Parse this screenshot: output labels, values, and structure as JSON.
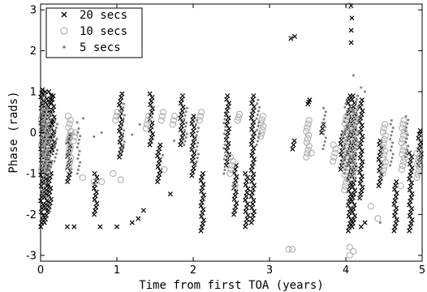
{
  "chart_data": {
    "type": "scatter",
    "xlabel": "Time from first TOA (years)",
    "ylabel": "Phase (rads)",
    "xlim": [
      0,
      5
    ],
    "ylim": [
      -3.1416,
      3.1416
    ],
    "x_ticks": [
      0,
      1,
      2,
      3,
      4,
      5
    ],
    "x_tick_labels": [
      "0",
      "1",
      "2",
      "3",
      "4",
      "5"
    ],
    "y_ticks": [
      -3,
      -2,
      -1,
      0,
      1,
      2,
      3
    ],
    "y_tick_labels": [
      "-3",
      "-2",
      "-1",
      "0",
      "1",
      "2",
      "3"
    ],
    "grid": false,
    "legend_position": "top-left",
    "series": [
      {
        "name": "20 secs",
        "marker": "x",
        "color": "#000000",
        "clusters": [
          {
            "x": 0.02,
            "ymin": -2.3,
            "ymax": 1.05
          },
          {
            "x": 0.07,
            "ymin": -2.2,
            "ymax": 1.0
          },
          {
            "x": 0.12,
            "ymin": -1.9,
            "ymax": 1.0
          },
          {
            "x": 0.16,
            "ymin": -0.5,
            "ymax": 0.9
          },
          {
            "x": 0.37,
            "ymin": -1.2,
            "ymax": -0.05
          },
          {
            "x": 0.72,
            "ymin": -2.0,
            "ymax": -1.0
          },
          {
            "x": 1.05,
            "ymin": -0.6,
            "ymax": 0.95
          },
          {
            "x": 1.45,
            "ymin": -0.3,
            "ymax": 0.95
          },
          {
            "x": 1.55,
            "ymin": -1.2,
            "ymax": -0.3
          },
          {
            "x": 1.85,
            "ymin": -0.3,
            "ymax": 0.9
          },
          {
            "x": 2.0,
            "ymin": -1.05,
            "ymax": 0.4
          },
          {
            "x": 2.12,
            "ymin": -2.4,
            "ymax": -1.0
          },
          {
            "x": 2.45,
            "ymin": -0.8,
            "ymax": 0.9
          },
          {
            "x": 2.55,
            "ymin": -2.0,
            "ymax": -0.8
          },
          {
            "x": 2.7,
            "ymin": -2.3,
            "ymax": -1.0
          },
          {
            "x": 2.78,
            "ymin": -2.2,
            "ymax": 0.9
          },
          {
            "x": 3.32,
            "ymin": -0.4,
            "ymax": -0.2
          },
          {
            "x": 3.52,
            "ymin": 0.7,
            "ymax": 0.8
          },
          {
            "x": 3.7,
            "ymin": 0.0,
            "ymax": 0.2
          },
          {
            "x": 3.95,
            "ymin": -0.9,
            "ymax": 0.0
          },
          {
            "x": 4.05,
            "ymin": -2.4,
            "ymax": 0.9
          },
          {
            "x": 4.1,
            "ymin": -2.3,
            "ymax": 0.9
          },
          {
            "x": 4.2,
            "ymin": -1.6,
            "ymax": 0.8
          },
          {
            "x": 4.45,
            "ymin": -1.3,
            "ymax": -0.2
          },
          {
            "x": 4.65,
            "ymin": -2.4,
            "ymax": -1.2
          },
          {
            "x": 4.85,
            "ymin": -2.4,
            "ymax": -0.5
          },
          {
            "x": 4.97,
            "ymin": -0.8,
            "ymax": 0.05
          }
        ],
        "points": [
          {
            "x": 0.35,
            "y": -2.3
          },
          {
            "x": 0.44,
            "y": -2.3
          },
          {
            "x": 0.78,
            "y": -2.3
          },
          {
            "x": 1.0,
            "y": -2.3
          },
          {
            "x": 1.2,
            "y": -2.2
          },
          {
            "x": 1.28,
            "y": -2.1
          },
          {
            "x": 1.35,
            "y": -1.9
          },
          {
            "x": 1.7,
            "y": -1.5
          },
          {
            "x": 3.28,
            "y": 2.3
          },
          {
            "x": 3.33,
            "y": 2.35
          },
          {
            "x": 4.07,
            "y": 3.1
          },
          {
            "x": 4.07,
            "y": 2.5
          },
          {
            "x": 4.07,
            "y": 2.2
          },
          {
            "x": 4.08,
            "y": 2.8
          },
          {
            "x": 4.2,
            "y": -2.3
          },
          {
            "x": 4.25,
            "y": -2.2
          }
        ]
      },
      {
        "name": "10 secs",
        "marker": "circle",
        "color": "#b0b0b0",
        "clusters": [
          {
            "x": 0.03,
            "ymin": -0.9,
            "ymax": 0.6
          },
          {
            "x": 0.1,
            "ymin": -1.0,
            "ymax": 0.5
          },
          {
            "x": 0.38,
            "ymin": -0.9,
            "ymax": 0.4
          },
          {
            "x": 0.45,
            "ymin": -0.2,
            "ymax": 0.0
          },
          {
            "x": 1.0,
            "ymin": 0.3,
            "ymax": 0.5
          },
          {
            "x": 1.4,
            "ymin": 0.1,
            "ymax": 0.4
          },
          {
            "x": 1.6,
            "ymin": 0.3,
            "ymax": 0.5
          },
          {
            "x": 1.75,
            "ymin": 0.2,
            "ymax": 0.4
          },
          {
            "x": 2.1,
            "ymin": 0.3,
            "ymax": 0.5
          },
          {
            "x": 2.5,
            "ymin": -1.0,
            "ymax": -0.6
          },
          {
            "x": 2.6,
            "ymin": 0.3,
            "ymax": 0.45
          },
          {
            "x": 2.9,
            "ymin": -0.1,
            "ymax": 0.4
          },
          {
            "x": 3.5,
            "ymin": -0.6,
            "ymax": 0.3
          },
          {
            "x": 3.85,
            "ymin": -0.7,
            "ymax": -0.3
          },
          {
            "x": 4.0,
            "ymin": -1.4,
            "ymax": 0.4
          },
          {
            "x": 4.1,
            "ymin": -1.1,
            "ymax": 0.6
          },
          {
            "x": 4.5,
            "ymin": -1.0,
            "ymax": 0.2
          },
          {
            "x": 4.75,
            "ymin": -0.9,
            "ymax": 0.3
          },
          {
            "x": 4.95,
            "ymin": -1.1,
            "ymax": -0.5
          }
        ],
        "points": [
          {
            "x": 0.55,
            "y": -1.1
          },
          {
            "x": 0.7,
            "y": -1.2
          },
          {
            "x": 0.8,
            "y": -1.2
          },
          {
            "x": 0.95,
            "y": -1.0
          },
          {
            "x": 1.05,
            "y": -1.15
          },
          {
            "x": 1.62,
            "y": -0.9
          },
          {
            "x": 2.55,
            "y": -1.3
          },
          {
            "x": 3.25,
            "y": -2.85
          },
          {
            "x": 3.3,
            "y": -2.85
          },
          {
            "x": 3.55,
            "y": -0.5
          },
          {
            "x": 4.05,
            "y": 3.1
          },
          {
            "x": 4.05,
            "y": -2.8
          },
          {
            "x": 4.05,
            "y": -3.0
          },
          {
            "x": 4.1,
            "y": -2.9
          },
          {
            "x": 4.33,
            "y": -1.8
          },
          {
            "x": 4.42,
            "y": -2.1
          },
          {
            "x": 4.72,
            "y": -1.3
          }
        ]
      },
      {
        "name": "5 secs",
        "marker": "dot",
        "color": "#808080",
        "clusters": [
          {
            "x": 0.05,
            "ymin": -1.5,
            "ymax": 0.9
          },
          {
            "x": 0.2,
            "ymin": -0.7,
            "ymax": 0.3
          },
          {
            "x": 0.5,
            "ymin": -1.0,
            "ymax": 0.1
          },
          {
            "x": 1.08,
            "ymin": -0.5,
            "ymax": 0.7
          },
          {
            "x": 1.9,
            "ymin": -0.3,
            "ymax": 0.6
          },
          {
            "x": 2.05,
            "ymin": -0.8,
            "ymax": 0.3
          },
          {
            "x": 2.42,
            "ymin": -1.0,
            "ymax": 0.5
          },
          {
            "x": 2.85,
            "ymin": -0.3,
            "ymax": 0.8
          },
          {
            "x": 3.72,
            "ymin": -0.4,
            "ymax": 0.6
          },
          {
            "x": 4.0,
            "ymin": -1.0,
            "ymax": 0.8
          },
          {
            "x": 4.15,
            "ymin": -0.5,
            "ymax": 0.9
          },
          {
            "x": 4.6,
            "ymin": -0.8,
            "ymax": 0.3
          },
          {
            "x": 4.8,
            "ymin": -0.6,
            "ymax": 0.4
          }
        ],
        "points": [
          {
            "x": 0.48,
            "y": 0.25
          },
          {
            "x": 0.56,
            "y": 0.35
          },
          {
            "x": 0.7,
            "y": -0.1
          },
          {
            "x": 0.8,
            "y": 0.0
          },
          {
            "x": 1.2,
            "y": -0.05
          },
          {
            "x": 1.3,
            "y": 0.2
          },
          {
            "x": 1.6,
            "y": -0.55
          },
          {
            "x": 1.75,
            "y": -0.2
          },
          {
            "x": 3.27,
            "y": 2.33
          },
          {
            "x": 4.1,
            "y": 1.4
          },
          {
            "x": 4.1,
            "y": -1.8
          },
          {
            "x": 4.2,
            "y": 1.1
          },
          {
            "x": 4.25,
            "y": 1.0
          },
          {
            "x": 4.45,
            "y": -2.2
          }
        ]
      }
    ]
  }
}
